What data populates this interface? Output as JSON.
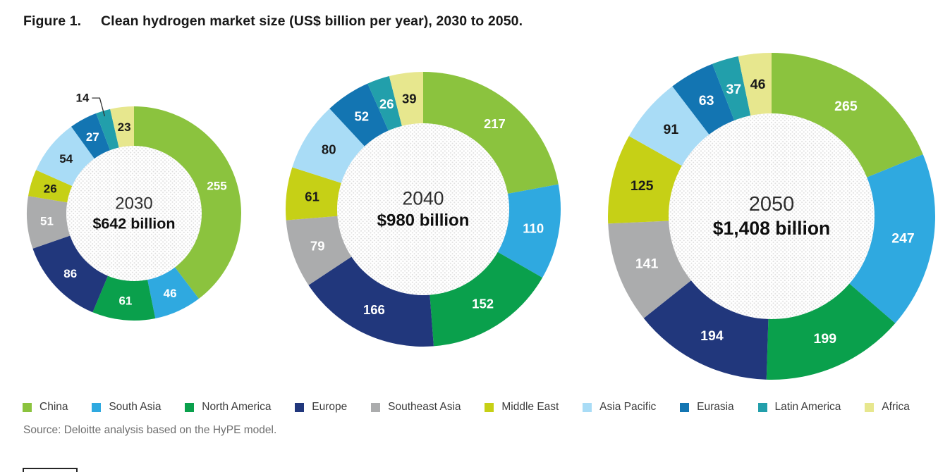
{
  "title": {
    "prefix": "Figure 1.",
    "text": "Clean hydrogen market size (US$ billion per year), 2030 to 2050."
  },
  "source": "Source: Deloitte analysis based on the HyPE model.",
  "chart_data": {
    "type": "pie",
    "subtype": "donut",
    "title": "Clean hydrogen market size (US$ billion per year), 2030 to 2050",
    "unit": "US$ billion per year",
    "legend_position": "bottom",
    "series_meta": [
      {
        "name": "China",
        "color": "#8BC33E",
        "label_color": "#FFFFFF"
      },
      {
        "name": "South Asia",
        "color": "#2FA9E0",
        "label_color": "#FFFFFF"
      },
      {
        "name": "North America",
        "color": "#0AA04C",
        "label_color": "#FFFFFF"
      },
      {
        "name": "Europe",
        "color": "#21377C",
        "label_color": "#FFFFFF"
      },
      {
        "name": "Southeast Asia",
        "color": "#ABACAD",
        "label_color": "#FFFFFF"
      },
      {
        "name": "Middle East",
        "color": "#C6D016",
        "label_color": "#1A1A1A"
      },
      {
        "name": "Asia Pacific",
        "color": "#A9DCF6",
        "label_color": "#1A1A1A"
      },
      {
        "name": "Eurasia",
        "color": "#1375B2",
        "label_color": "#FFFFFF"
      },
      {
        "name": "Latin America",
        "color": "#229FAB",
        "label_color": "#FFFFFF"
      },
      {
        "name": "Africa",
        "color": "#E7E78E",
        "label_color": "#1A1A1A"
      }
    ],
    "charts": [
      {
        "year": "2030",
        "total_label": "$642 billion",
        "values": [
          255,
          46,
          61,
          86,
          51,
          26,
          54,
          27,
          14,
          23
        ],
        "outside_labels": [
          "Latin America"
        ]
      },
      {
        "year": "2040",
        "total_label": "$980 billion",
        "values": [
          217,
          110,
          152,
          166,
          79,
          61,
          80,
          52,
          26,
          39
        ],
        "outside_labels": []
      },
      {
        "year": "2050",
        "total_label": "$1,408 billion",
        "values": [
          265,
          247,
          199,
          194,
          141,
          125,
          91,
          63,
          37,
          46
        ],
        "outside_labels": []
      }
    ]
  }
}
